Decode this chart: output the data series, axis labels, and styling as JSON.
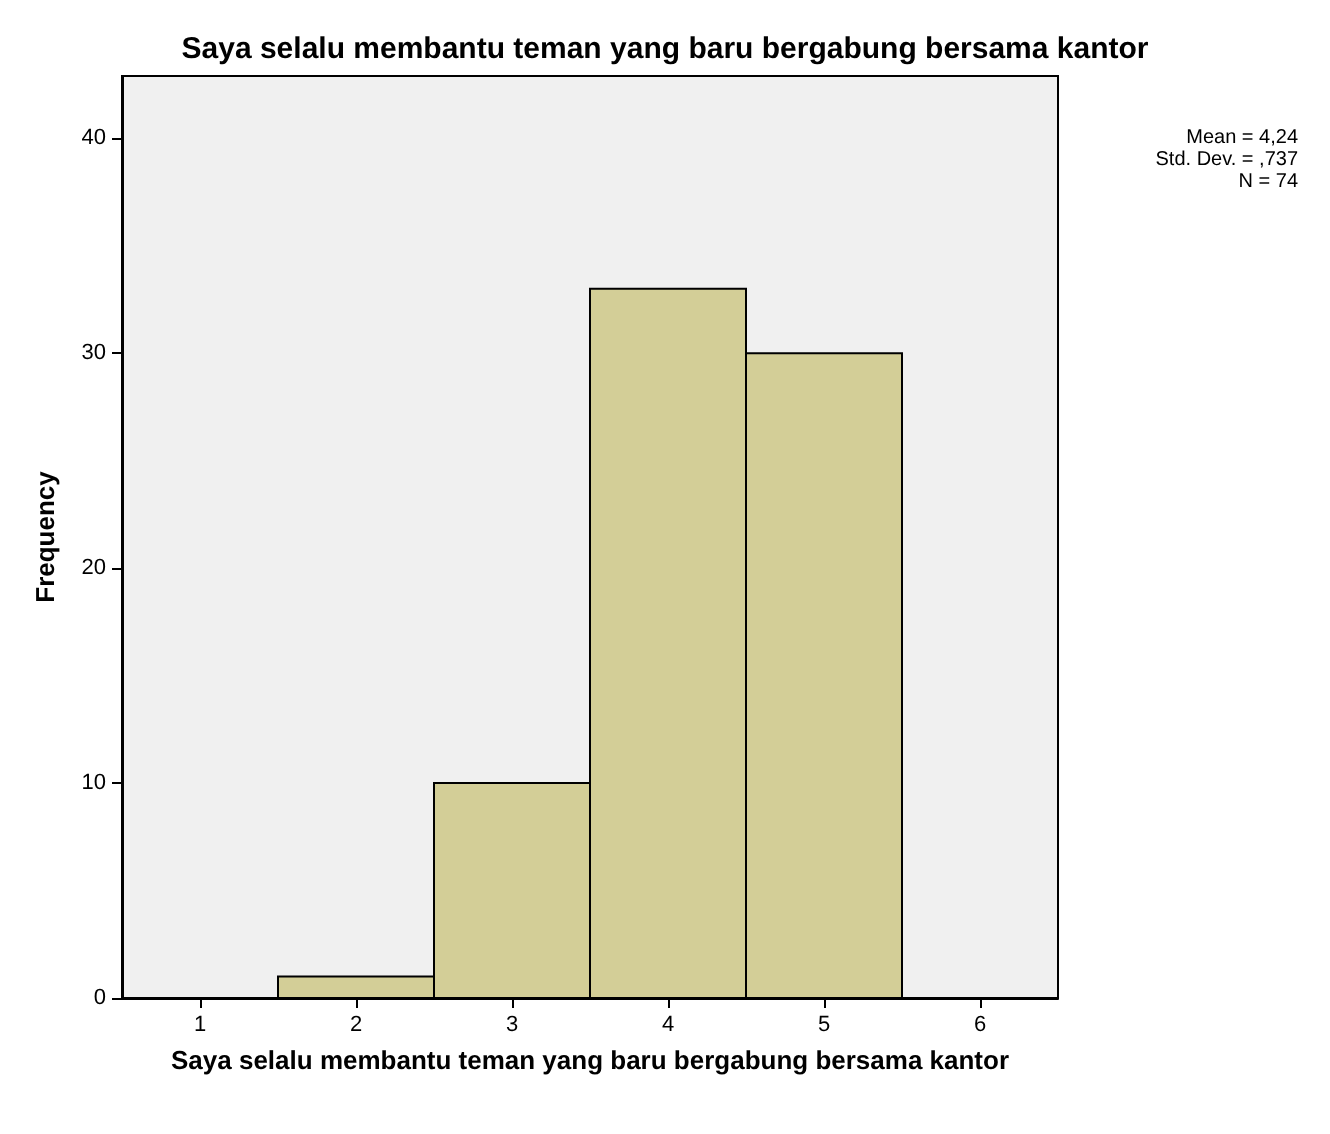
{
  "chart_data": {
    "type": "histogram",
    "title": "Saya selalu membantu teman yang baru bergabung bersama kantor",
    "xlabel": "Saya selalu membantu teman yang baru bergabung bersama kantor",
    "ylabel": "Frequency",
    "bins": [
      1.5,
      2.5,
      3.5,
      4.5,
      5.5
    ],
    "values": [
      1,
      10,
      33,
      30
    ],
    "color": "#d3ce97",
    "xlim": [
      0.5,
      6.5
    ],
    "xticks": [
      1,
      2,
      3,
      4,
      5,
      6
    ],
    "ylim": [
      0,
      42.9
    ],
    "yticks": [
      0,
      10,
      20,
      30,
      40
    ],
    "annotations": [
      "Mean = 4,24",
      "Std. Dev. = ,737",
      "N = 74"
    ]
  }
}
